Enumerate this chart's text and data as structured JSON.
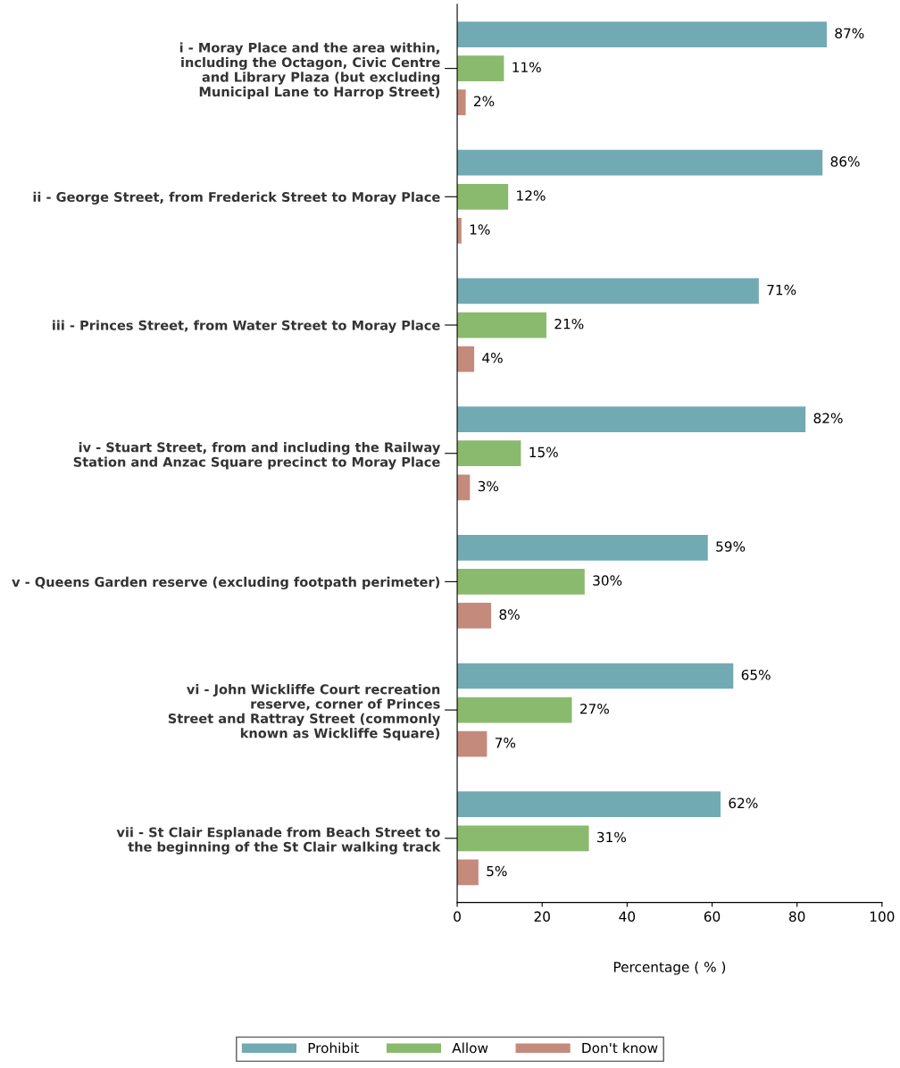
{
  "chart_data": {
    "type": "bar",
    "orientation": "horizontal",
    "xlabel": "Percentage ( % )",
    "categories": [
      "i - Moray Place and the area within,\nincluding the Octagon, Civic Centre\nand Library Plaza (but excluding\nMunicipal Lane to Harrop Street)",
      "ii - George Street, from Frederick Street to Moray Place",
      "iii - Princes Street, from Water Street to Moray Place",
      "iv - Stuart Street, from and including the Railway\nStation and Anzac Square precinct to Moray Place",
      "v - Queens Garden reserve (excluding footpath perimeter)",
      "vi - John Wickliffe Court recreation\nreserve, corner of Princes\nStreet and Rattray Street (commonly\nknown as Wickliffe Square)",
      "vii - St Clair Esplanade from Beach Street to\nthe beginning of the St Clair walking track"
    ],
    "series": [
      {
        "name": "Prohibit",
        "color": "#72aab4",
        "values": [
          87,
          86,
          71,
          82,
          59,
          65,
          62
        ],
        "value_labels": [
          "87%",
          "86%",
          "71%",
          "82%",
          "59%",
          "65%",
          "62%"
        ]
      },
      {
        "name": "Allow",
        "color": "#8aba6e",
        "values": [
          11,
          12,
          21,
          15,
          30,
          27,
          31
        ],
        "value_labels": [
          "11%",
          "12%",
          "21%",
          "15%",
          "30%",
          "27%",
          "31%"
        ]
      },
      {
        "name": "Don't know",
        "color": "#c48a7c",
        "values": [
          2,
          1,
          4,
          3,
          8,
          7,
          5
        ],
        "value_labels": [
          "2%",
          "1%",
          "4%",
          "3%",
          "8%",
          "7%",
          "5%"
        ]
      }
    ],
    "xlim": [
      0,
      100
    ],
    "xticks": [
      0,
      20,
      40,
      60,
      80,
      100
    ],
    "grid": false,
    "legend": "bottom"
  }
}
